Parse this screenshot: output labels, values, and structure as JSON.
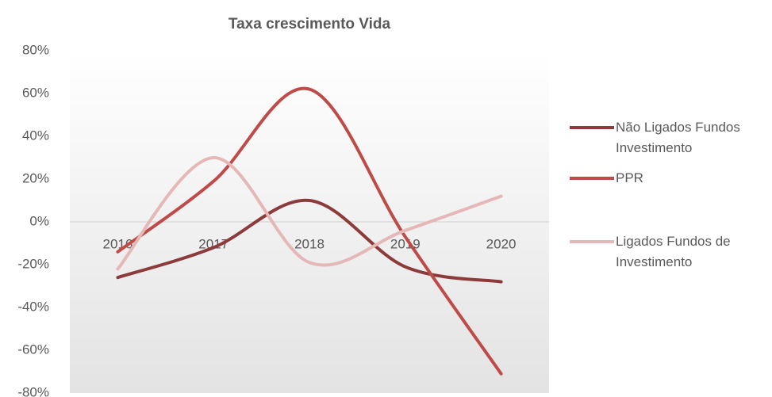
{
  "chart_data": {
    "type": "line",
    "title": "Taxa crescimento Vida",
    "categories": [
      "2016",
      "2017",
      "2018",
      "2019",
      "2020"
    ],
    "series": [
      {
        "name": "Não Ligados Fundos Investimento",
        "color": "#8c3a3a",
        "values": [
          -26,
          -12,
          10,
          -21,
          -28
        ]
      },
      {
        "name": "PPR",
        "color": "#bf4b49",
        "values": [
          -14,
          19,
          62,
          -7,
          -71
        ]
      },
      {
        "name": "Ligados Fundos de Investimento",
        "color": "#e5b8b7",
        "values": [
          -22,
          30,
          -19,
          -4,
          12
        ]
      }
    ],
    "ylim": [
      -80,
      80
    ],
    "yticks": [
      {
        "value": -80,
        "label": "-80%"
      },
      {
        "value": -60,
        "label": "-60%"
      },
      {
        "value": -40,
        "label": "-40%"
      },
      {
        "value": -20,
        "label": "-20%"
      },
      {
        "value": 0,
        "label": "0%"
      },
      {
        "value": 20,
        "label": "20%"
      },
      {
        "value": 40,
        "label": "40%"
      },
      {
        "value": 60,
        "label": "60%"
      },
      {
        "value": 80,
        "label": "80%"
      }
    ],
    "smooth": true,
    "legend": "right"
  }
}
